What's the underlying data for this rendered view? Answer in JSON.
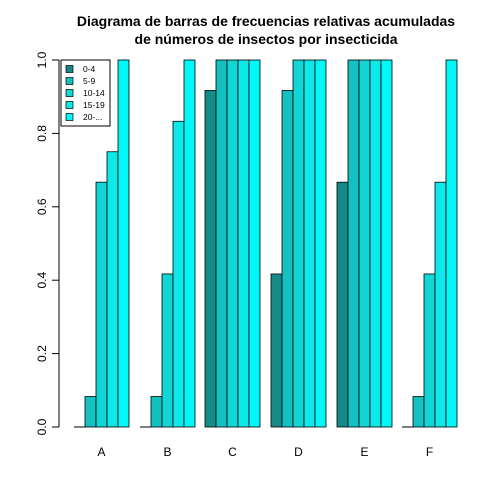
{
  "chart_data": {
    "type": "bar",
    "title_lines": [
      "Diagrama de barras de frecuencias relativas acumuladas",
      "de números de insectos por insecticida"
    ],
    "xlabel": "",
    "ylabel": "",
    "ylim": [
      0,
      1
    ],
    "yticks": [
      "0.0",
      "0.2",
      "0.4",
      "0.6",
      "0.8",
      "1.0"
    ],
    "grid": false,
    "legend_position": "top-left",
    "categories": [
      "A",
      "B",
      "C",
      "D",
      "E",
      "F"
    ],
    "series": [
      {
        "name": "0-4",
        "color": "#148B89",
        "values": [
          0.0,
          0.0,
          0.917,
          0.417,
          0.667,
          0.0
        ]
      },
      {
        "name": "5-9",
        "color": "#14C1C1",
        "values": [
          0.083,
          0.083,
          1.0,
          0.917,
          1.0,
          0.083
        ]
      },
      {
        "name": "10-14",
        "color": "#10D6D6",
        "values": [
          0.667,
          0.417,
          1.0,
          1.0,
          1.0,
          0.417
        ]
      },
      {
        "name": "15-19",
        "color": "#0DE8E8",
        "values": [
          0.75,
          0.833,
          1.0,
          1.0,
          1.0,
          0.667
        ]
      },
      {
        "name": "20-...",
        "color": "#00F8F8",
        "values": [
          1.0,
          1.0,
          1.0,
          1.0,
          1.0,
          1.0
        ]
      }
    ]
  }
}
